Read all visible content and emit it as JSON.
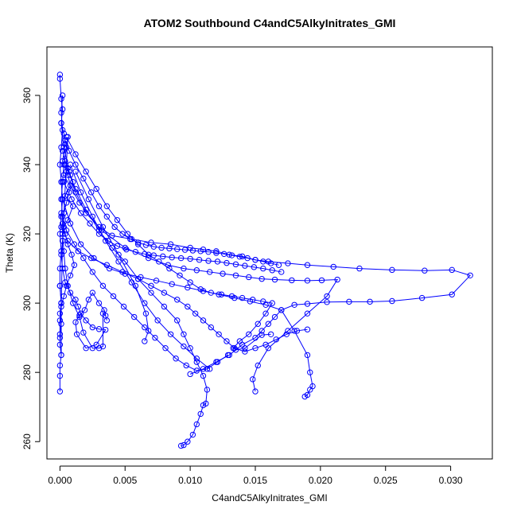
{
  "chart_data": {
    "type": "scatter",
    "title": "ATOM2 Southbound C4andC5AlkyInitrates_GMI",
    "xlabel": "C4andC5AlkyInitrates_GMI",
    "ylabel": "Theta (K)",
    "xlim": [
      -0.001,
      0.0332
    ],
    "ylim": [
      255,
      374
    ],
    "x_ticks": [
      0.0,
      0.005,
      0.01,
      0.015,
      0.02,
      0.025,
      0.03
    ],
    "x_tick_labels": [
      "0.000",
      "0.005",
      "0.010",
      "0.015",
      "0.020",
      "0.025",
      "0.030"
    ],
    "y_ticks": [
      260,
      280,
      300,
      320,
      340,
      360
    ],
    "y_tick_labels": [
      "260",
      "280",
      "300",
      "320",
      "340",
      "360"
    ],
    "grid": false,
    "legend": "none",
    "style": "points-and-lines",
    "marker": "open-circle",
    "color": "#0000ff",
    "series": [
      {
        "x": [
          0.0,
          0.0,
          0.0001,
          0.0002,
          0.0001,
          0.0003,
          0.0004,
          0.0002,
          0.0005,
          0.0006,
          0.0008,
          0.0004,
          0.001,
          0.0006,
          0.0003,
          0.0002,
          0.0001,
          0.0002,
          0.0004,
          0.0008,
          0.0012,
          0.0014,
          0.0016,
          0.002,
          0.0025,
          0.003,
          0.0035,
          0.0028,
          0.002,
          0.0013,
          0.0012,
          0.0015,
          0.0019,
          0.0022,
          0.0025,
          0.003,
          0.0034,
          0.0036,
          0.0035,
          0.0033,
          0.0033,
          0.003,
          0.0025,
          0.0018,
          0.0015,
          0.001,
          0.0006,
          0.0004,
          0.0003,
          0.0002,
          0.0002,
          0.0001,
          0.0002,
          0.0003,
          0.0005,
          0.0006,
          0.0002,
          0.0001,
          0.0001
        ],
        "y": [
          366,
          364.8,
          359,
          356,
          352,
          349,
          346,
          341,
          338,
          337,
          334,
          331,
          328,
          324,
          322,
          318,
          314,
          310,
          306,
          303,
          301,
          299,
          297,
          295,
          293,
          292.5,
          292.3,
          288,
          287,
          291,
          294.5,
          296.5,
          298,
          301,
          303,
          300,
          298,
          295,
          296.4,
          297,
          287.5,
          287,
          287,
          291.5,
          296,
          300,
          305,
          310,
          315,
          320,
          325,
          330,
          335,
          340,
          345,
          348,
          318,
          300,
          285
        ]
      },
      {
        "x": [
          0.0001,
          0.0003,
          0.0007,
          0.0012,
          0.002,
          0.003,
          0.004,
          0.0055,
          0.007,
          0.0085,
          0.01,
          0.011,
          0.012,
          0.013,
          0.014,
          0.015,
          0.016,
          0.0175,
          0.019,
          0.021,
          0.023,
          0.0255,
          0.028,
          0.0301,
          0.0315,
          0.0301,
          0.0278,
          0.0255,
          0.0238,
          0.0222,
          0.0205,
          0.019,
          0.018,
          0.017,
          0.0165,
          0.016,
          0.0155,
          0.015,
          0.014,
          0.013,
          0.012,
          0.011,
          0.01
        ],
        "y": [
          352,
          345,
          338,
          332,
          326,
          322,
          319.5,
          318.5,
          317.5,
          317,
          316,
          315.5,
          315,
          314,
          313.5,
          312.5,
          312,
          311.5,
          311,
          310.5,
          310,
          309.6,
          309.4,
          309.6,
          308,
          302.5,
          301.5,
          300.6,
          300.4,
          300.4,
          300.3,
          299.8,
          299.5,
          298,
          296,
          294,
          292,
          290,
          288,
          285,
          283,
          281,
          279.5
        ]
      },
      {
        "x": [
          0.0004,
          0.0012,
          0.002,
          0.003,
          0.004,
          0.005,
          0.006,
          0.007,
          0.008,
          0.009,
          0.0095,
          0.01,
          0.0105,
          0.011,
          0.0113,
          0.0112,
          0.011,
          0.0108,
          0.0105,
          0.0102,
          0.0098,
          0.0095,
          0.0093
        ],
        "y": [
          340,
          333,
          327,
          321,
          316,
          312,
          307,
          303,
          299,
          295,
          291,
          287,
          283,
          279,
          275,
          271,
          270.5,
          268,
          265,
          262,
          260,
          259,
          258.8
        ]
      },
      {
        "x": [
          0.0003,
          0.0015,
          0.0032,
          0.005,
          0.0068,
          0.0083,
          0.0095,
          0.0105,
          0.0115,
          0.0125,
          0.0135,
          0.0145,
          0.0155,
          0.0165,
          0.0178,
          0.019,
          0.0201,
          0.0213,
          0.0205,
          0.019,
          0.0175,
          0.016,
          0.0152,
          0.0148,
          0.015
        ],
        "y": [
          337,
          329,
          321,
          316,
          313,
          311,
          310,
          309.5,
          309,
          308.5,
          308,
          307.5,
          307,
          306.8,
          306.6,
          306.5,
          306.6,
          306.8,
          302,
          297,
          292,
          287,
          282,
          278,
          274.5
        ]
      },
      {
        "x": [
          0.0005,
          0.0012,
          0.002,
          0.0028,
          0.0036,
          0.0044,
          0.0052,
          0.006,
          0.0068,
          0.0076,
          0.0084,
          0.0092,
          0.01,
          0.0108,
          0.0116,
          0.0124,
          0.0132,
          0.014,
          0.0148,
          0.0156,
          0.0163,
          0.0158,
          0.0152,
          0.0145,
          0.0138,
          0.0133,
          0.0135,
          0.0142,
          0.0155,
          0.0162
        ],
        "y": [
          348,
          343,
          338,
          333,
          328,
          324,
          320,
          317,
          314,
          312,
          310,
          308,
          306,
          304,
          303,
          302.5,
          302,
          301.5,
          301,
          300.5,
          300,
          297,
          294,
          291,
          289,
          287,
          286.5,
          287,
          290.8,
          291
        ]
      },
      {
        "x": [
          0.0002,
          0.0008,
          0.0016,
          0.0026,
          0.0038,
          0.005,
          0.0062,
          0.0074,
          0.0086,
          0.0098,
          0.011,
          0.0122,
          0.0134,
          0.0146,
          0.0158,
          0.017,
          0.018,
          0.019,
          0.0192,
          0.0194,
          0.0192,
          0.019,
          0.0188
        ],
        "y": [
          330,
          323,
          317,
          313,
          310,
          308.5,
          307.5,
          306.5,
          305.5,
          304.5,
          303.5,
          302.5,
          301.5,
          300.5,
          299.5,
          298,
          292,
          285,
          280,
          276,
          275,
          273.5,
          273
        ]
      },
      {
        "x": [
          0.0001,
          0.0006,
          0.0014,
          0.0024,
          0.0036,
          0.0048,
          0.006,
          0.007,
          0.008,
          0.009,
          0.0098,
          0.0104,
          0.011,
          0.0116,
          0.0122,
          0.0128,
          0.0134,
          0.0142,
          0.015,
          0.0158,
          0.0166,
          0.0174,
          0.0182,
          0.019
        ],
        "y": [
          322,
          318,
          315,
          313,
          311,
          309,
          307,
          305,
          303,
          301,
          299,
          297,
          295,
          293,
          291,
          289,
          287,
          286,
          287,
          288,
          289.5,
          291,
          292,
          292.4
        ]
      },
      {
        "x": [
          0.0002,
          0.0004,
          0.0006,
          0.0008,
          0.001,
          0.0007,
          0.0005,
          0.0003,
          0.0002,
          0.0004,
          0.0006,
          0.0009,
          0.0011,
          0.0008,
          0.0005,
          0.0003,
          0.0001
        ],
        "y": [
          344,
          341,
          339,
          337,
          335,
          332,
          329,
          326,
          323,
          320,
          317,
          314,
          311,
          308,
          305,
          302,
          299
        ]
      },
      {
        "x": [
          0.0003,
          0.0009,
          0.0016,
          0.0023,
          0.003,
          0.0037,
          0.0044,
          0.0051,
          0.0058,
          0.0065,
          0.0072,
          0.0079,
          0.0086,
          0.0093,
          0.01,
          0.0107,
          0.0114,
          0.0121,
          0.0128,
          0.0135,
          0.0142,
          0.0149,
          0.0156,
          0.0163,
          0.017
        ],
        "y": [
          335,
          330,
          326,
          323,
          320,
          318,
          316.5,
          315.5,
          314.8,
          314.2,
          313.8,
          313.5,
          313.2,
          313,
          312.8,
          312.5,
          312.2,
          312,
          311.6,
          311.2,
          310.8,
          310.4,
          310,
          309.5,
          309
        ]
      },
      {
        "x": [
          0.0001,
          0.0005,
          0.0011,
          0.0018,
          0.0025,
          0.0033,
          0.0041,
          0.0049,
          0.0057,
          0.0065,
          0.0073,
          0.0081,
          0.0089,
          0.0097,
          0.0105,
          0.0113,
          0.0121,
          0.0129
        ],
        "y": [
          326,
          321,
          317,
          313,
          309,
          305,
          302,
          299,
          296,
          293,
          290,
          287,
          284,
          282,
          280.5,
          281,
          283,
          285
        ]
      },
      {
        "x": [
          0.0004,
          0.0007,
          0.0012,
          0.0018,
          0.0024,
          0.003,
          0.0036,
          0.0042,
          0.0048,
          0.0054,
          0.006,
          0.0066,
          0.0072,
          0.0078,
          0.0084,
          0.009,
          0.0096,
          0.0102,
          0.0108,
          0.0114,
          0.012,
          0.0126,
          0.0132,
          0.0138,
          0.0144,
          0.015,
          0.0156,
          0.0162,
          0.0168
        ],
        "y": [
          347,
          344,
          340,
          336,
          332,
          328,
          325,
          322,
          320,
          318.5,
          317.5,
          316.8,
          316.3,
          316,
          315.8,
          315.6,
          315.4,
          315.2,
          315,
          314.8,
          314.5,
          314.2,
          313.8,
          313.4,
          313,
          312.5,
          312,
          311.5,
          311
        ]
      },
      {
        "x": [
          0.0002,
          0.0001,
          0.0002,
          0.0001,
          0.0,
          0.0001,
          0.0002,
          0.0001,
          0.0,
          0.0001,
          0.0,
          0.0,
          0.0001,
          0.0,
          0.0
        ],
        "y": [
          360,
          355,
          350,
          345,
          340,
          335,
          330,
          325,
          320,
          315,
          310,
          305,
          300,
          295,
          290
        ]
      },
      {
        "x": [
          0.0,
          0.0001,
          0.0,
          0.0001,
          0.0,
          0.0,
          0.0001,
          0.0,
          0.0,
          0.0
        ],
        "y": [
          305,
          300,
          297,
          294,
          291,
          288,
          285,
          282,
          279,
          274.5
        ]
      },
      {
        "x": [
          0.0012,
          0.0022,
          0.0033,
          0.0045,
          0.0058,
          0.0066,
          0.0068,
          0.0065
        ],
        "y": [
          338,
          330,
          322,
          314,
          305,
          297,
          292,
          289
        ]
      },
      {
        "x": [
          0.0008,
          0.0016,
          0.0025,
          0.0035,
          0.0045,
          0.0055,
          0.0065,
          0.0075,
          0.0085,
          0.0095,
          0.0105,
          0.0115
        ],
        "y": [
          340,
          332,
          325,
          318,
          312,
          306,
          300,
          295,
          291,
          287.5,
          284,
          281
        ]
      }
    ]
  }
}
